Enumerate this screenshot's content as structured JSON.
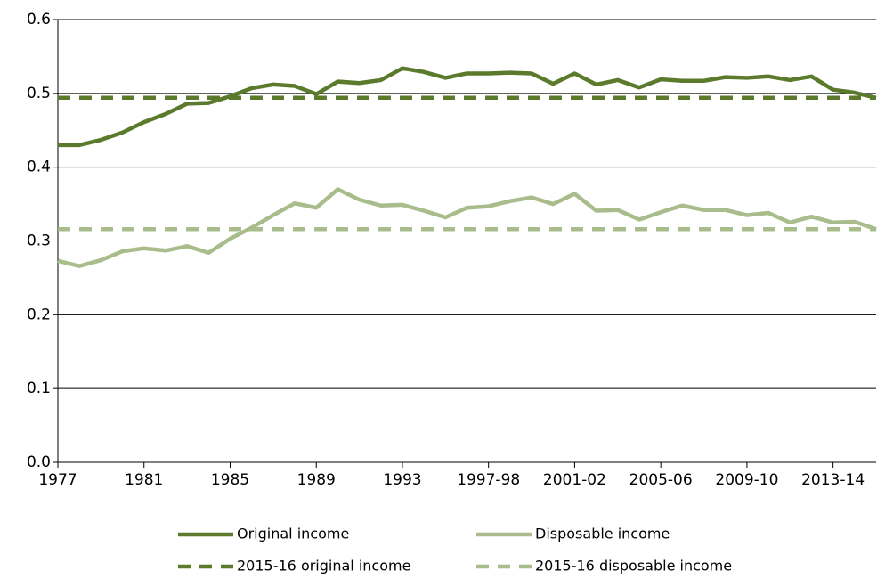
{
  "chart_data": {
    "type": "line",
    "categories": [
      "1977",
      null,
      null,
      null,
      "1981",
      null,
      null,
      null,
      "1985",
      null,
      null,
      null,
      "1989",
      null,
      null,
      null,
      "1993",
      null,
      null,
      null,
      "1997-98",
      null,
      null,
      null,
      "2001-02",
      null,
      null,
      null,
      "2005-06",
      null,
      null,
      null,
      "2009-10",
      null,
      null,
      null,
      "2013-14",
      null,
      null
    ],
    "ylim": [
      0,
      0.6
    ],
    "yticks": [
      {
        "value": 0,
        "label": "0.0"
      },
      0.1,
      0.2,
      0.3,
      0.4,
      0.5,
      0.6
    ],
    "grid": true,
    "legend": "bottom",
    "series": [
      {
        "name": "Original income",
        "color": "#5b7a2c",
        "dashed": false,
        "values": [
          0.43,
          0.43,
          0.437,
          0.447,
          0.461,
          0.472,
          0.486,
          0.487,
          0.496,
          0.507,
          0.512,
          0.51,
          0.499,
          0.516,
          0.514,
          0.518,
          0.534,
          0.529,
          0.521,
          0.527,
          0.527,
          0.528,
          0.527,
          0.513,
          0.527,
          0.512,
          0.518,
          0.508,
          0.519,
          0.517,
          0.517,
          0.522,
          0.521,
          0.523,
          0.518,
          0.523,
          0.505,
          0.501,
          0.494
        ]
      },
      {
        "name": "Disposable income",
        "color": "#a9bc8c",
        "dashed": false,
        "values": [
          0.273,
          0.266,
          0.274,
          0.286,
          0.29,
          0.287,
          0.293,
          0.284,
          0.303,
          0.318,
          0.335,
          0.351,
          0.345,
          0.37,
          0.356,
          0.348,
          0.349,
          0.341,
          0.332,
          0.345,
          0.347,
          0.354,
          0.359,
          0.35,
          0.364,
          0.341,
          0.342,
          0.329,
          0.339,
          0.348,
          0.342,
          0.342,
          0.335,
          0.338,
          0.325,
          0.333,
          0.325,
          0.326,
          0.316
        ]
      },
      {
        "name": "2015-16 original income",
        "color": "#5b7a2c",
        "dashed": true,
        "values": [
          0.494,
          0.494,
          0.494,
          0.494,
          0.494,
          0.494,
          0.494,
          0.494,
          0.494,
          0.494,
          0.494,
          0.494,
          0.494,
          0.494,
          0.494,
          0.494,
          0.494,
          0.494,
          0.494,
          0.494,
          0.494,
          0.494,
          0.494,
          0.494,
          0.494,
          0.494,
          0.494,
          0.494,
          0.494,
          0.494,
          0.494,
          0.494,
          0.494,
          0.494,
          0.494,
          0.494,
          0.494,
          0.494,
          0.494
        ]
      },
      {
        "name": "2015-16 disposable income",
        "color": "#a9bc8c",
        "dashed": true,
        "values": [
          0.316,
          0.316,
          0.316,
          0.316,
          0.316,
          0.316,
          0.316,
          0.316,
          0.316,
          0.316,
          0.316,
          0.316,
          0.316,
          0.316,
          0.316,
          0.316,
          0.316,
          0.316,
          0.316,
          0.316,
          0.316,
          0.316,
          0.316,
          0.316,
          0.316,
          0.316,
          0.316,
          0.316,
          0.316,
          0.316,
          0.316,
          0.316,
          0.316,
          0.316,
          0.316,
          0.316,
          0.316,
          0.316,
          0.316
        ]
      }
    ]
  }
}
